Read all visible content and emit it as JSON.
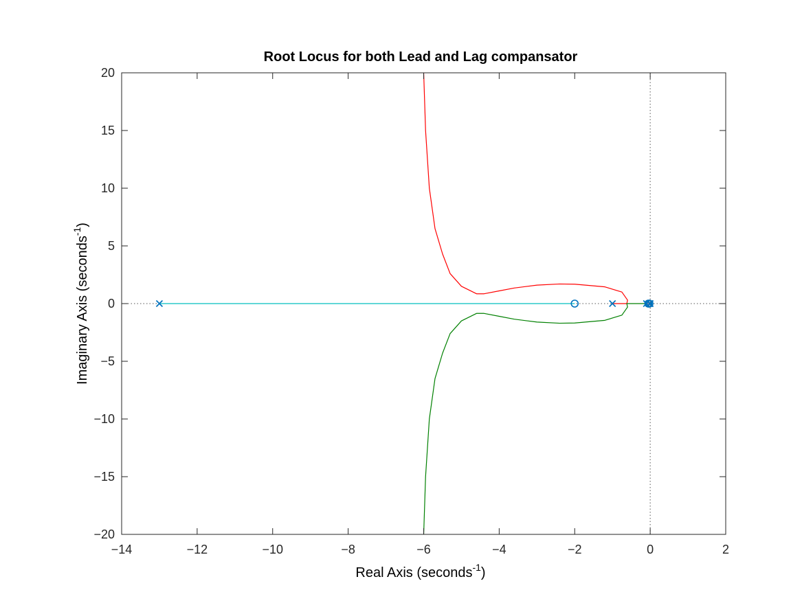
{
  "chart_data": {
    "type": "line",
    "title": "Root Locus for both  Lead and  Lag compansator",
    "xlabel": {
      "text": "Real Axis (seconds",
      "sup": "-1",
      "tail": ")"
    },
    "ylabel": {
      "text": "Imaginary Axis (seconds",
      "sup": "-1",
      "tail": ")"
    },
    "xlim": [
      -14,
      2
    ],
    "ylim": [
      -20,
      20
    ],
    "xticks": [
      -14,
      -12,
      -10,
      -8,
      -6,
      -4,
      -2,
      0,
      2
    ],
    "yticks": [
      -20,
      -15,
      -10,
      -5,
      0,
      5,
      10,
      15,
      20
    ],
    "xtick_labels": [
      "−14",
      "−12",
      "−10",
      "−8",
      "−6",
      "−4",
      "−2",
      "0",
      "2"
    ],
    "ytick_labels": [
      "−20",
      "−15",
      "−10",
      "−5",
      "0",
      "5",
      "10",
      "15",
      "20"
    ],
    "grid": false,
    "reference_lines": {
      "x": 0,
      "y": 0,
      "style": "dotted"
    },
    "poles": [
      {
        "re": -13,
        "im": 0
      },
      {
        "re": -1,
        "im": 0
      },
      {
        "re": -0.1,
        "im": 0
      },
      {
        "re": -0.01,
        "im": 0
      },
      {
        "re": 0,
        "im": 0
      }
    ],
    "zeros": [
      {
        "re": -2,
        "im": 0
      },
      {
        "re": -0.05,
        "im": 0
      },
      {
        "re": -0.02,
        "im": 0
      }
    ],
    "marker_color": "#0072BD",
    "series": [
      {
        "color": "#FF0000",
        "points": [
          [
            -1,
            0
          ],
          [
            -0.62,
            0
          ],
          [
            -0.6,
            0.3
          ],
          [
            -0.75,
            1.0
          ],
          [
            -1.2,
            1.45
          ],
          [
            -2.0,
            1.68
          ],
          [
            -2.4,
            1.7
          ],
          [
            -3.0,
            1.6
          ],
          [
            -3.6,
            1.35
          ],
          [
            -4.0,
            1.1
          ],
          [
            -4.4,
            0.85
          ],
          [
            -4.6,
            0.85
          ],
          [
            -5.0,
            1.5
          ],
          [
            -5.3,
            2.6
          ],
          [
            -5.5,
            4.3
          ],
          [
            -5.7,
            6.5
          ],
          [
            -5.85,
            10
          ],
          [
            -5.95,
            15
          ],
          [
            -6.0,
            20
          ]
        ]
      },
      {
        "color": "#008000",
        "points": [
          [
            -0.1,
            0
          ],
          [
            -0.62,
            0
          ],
          [
            -0.6,
            -0.3
          ],
          [
            -0.75,
            -1.0
          ],
          [
            -1.2,
            -1.45
          ],
          [
            -2.0,
            -1.68
          ],
          [
            -2.4,
            -1.7
          ],
          [
            -3.0,
            -1.6
          ],
          [
            -3.6,
            -1.35
          ],
          [
            -4.0,
            -1.1
          ],
          [
            -4.4,
            -0.85
          ],
          [
            -4.6,
            -0.85
          ],
          [
            -5.0,
            -1.5
          ],
          [
            -5.3,
            -2.6
          ],
          [
            -5.5,
            -4.3
          ],
          [
            -5.7,
            -6.5
          ],
          [
            -5.85,
            -10
          ],
          [
            -5.95,
            -15
          ],
          [
            -6.0,
            -20
          ]
        ]
      },
      {
        "color": "#00BFBF",
        "points": [
          [
            -13,
            0
          ],
          [
            -2,
            0
          ]
        ]
      },
      {
        "color": "#0072BD",
        "points": [
          [
            0,
            0
          ],
          [
            -0.02,
            0
          ]
        ]
      },
      {
        "color": "#7E2F8E",
        "points": [
          [
            -0.01,
            0
          ],
          [
            -0.05,
            0
          ]
        ]
      }
    ]
  }
}
